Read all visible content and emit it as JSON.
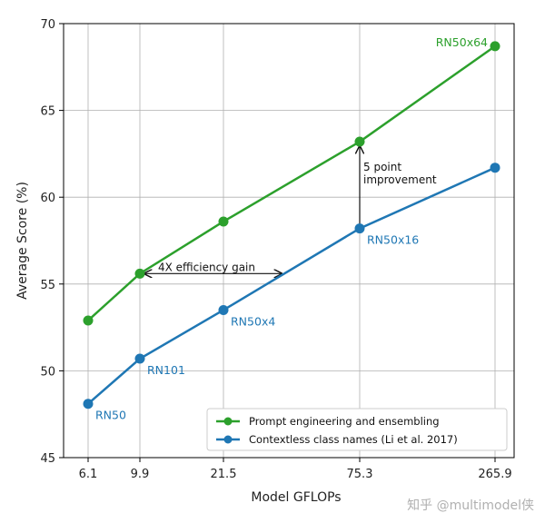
{
  "chart_data": {
    "type": "line",
    "xlabel": "Model GFLOPs",
    "ylabel": "Average Score (%)",
    "categories": [
      "6.1",
      "9.9",
      "21.5",
      "75.3",
      "265.9"
    ],
    "ylim": [
      45,
      70
    ],
    "yticks": [
      "45",
      "50",
      "55",
      "60",
      "65",
      "70"
    ],
    "grid": true,
    "legend_position": "lower-right",
    "series": [
      {
        "name": "Prompt engineering and ensembling",
        "color": "#2ca02c",
        "values": [
          52.9,
          55.6,
          58.6,
          63.2,
          68.7
        ]
      },
      {
        "name": "Contextless class names (Li et al. 2017)",
        "color": "#1f77b4",
        "values": [
          48.1,
          50.7,
          53.5,
          58.2,
          61.7
        ]
      }
    ],
    "point_labels": [
      {
        "text": "RN50",
        "series": 1,
        "index": 0,
        "color": "#1f77b4"
      },
      {
        "text": "RN101",
        "series": 1,
        "index": 1,
        "color": "#1f77b4"
      },
      {
        "text": "RN50x4",
        "series": 1,
        "index": 2,
        "color": "#1f77b4"
      },
      {
        "text": "RN50x16",
        "series": 1,
        "index": 3,
        "color": "#1f77b4"
      },
      {
        "text": "RN50x64",
        "series": 0,
        "index": 4,
        "color": "#2ca02c"
      }
    ],
    "annotations": {
      "efficiency": "4X efficiency gain",
      "improvement_line1": "5 point",
      "improvement_line2": "improvement"
    }
  },
  "watermark": "知乎 @multimodel侠"
}
